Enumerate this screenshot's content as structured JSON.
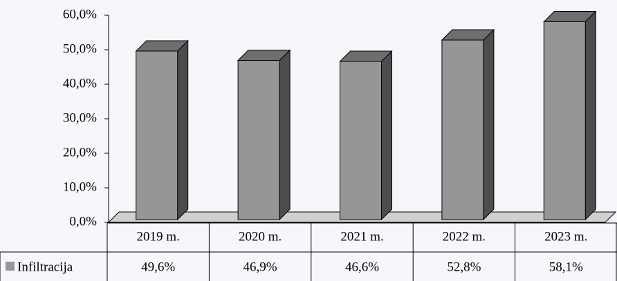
{
  "chart_data": {
    "type": "bar3d",
    "categories": [
      "2019 m.",
      "2020 m.",
      "2021 m.",
      "2022 m.",
      "2023 m."
    ],
    "series": [
      {
        "name": "Infiltracija",
        "color": "#969696",
        "values": [
          49.6,
          46.9,
          46.6,
          52.8,
          58.1
        ],
        "value_labels": [
          "49,6%",
          "46,9%",
          "46,6%",
          "52,8%",
          "58,1%"
        ]
      }
    ],
    "ylim": [
      0,
      60
    ],
    "yticks": [
      {
        "value": 0,
        "label": "0,0%"
      },
      {
        "value": 10,
        "label": "10,0%"
      },
      {
        "value": 20,
        "label": "20,0%"
      },
      {
        "value": 30,
        "label": "30,0%"
      },
      {
        "value": 40,
        "label": "40,0%"
      },
      {
        "value": 50,
        "label": "50,0%"
      },
      {
        "value": 60,
        "label": "60,0%"
      }
    ]
  }
}
